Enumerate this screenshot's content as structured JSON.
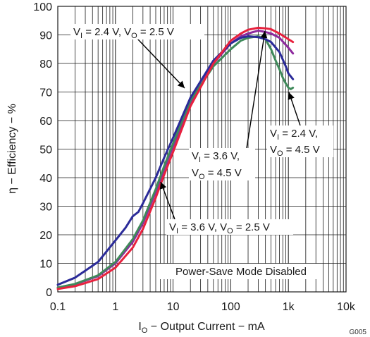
{
  "chart_data": {
    "type": "line",
    "xscale": "log",
    "xlim": [
      0.1,
      10000
    ],
    "ylim": [
      0,
      100
    ],
    "xlabel": {
      "main": "I",
      "sub": "O",
      "rest": " − Output Current − mA"
    },
    "ylabel": "η − Efficiency − %",
    "xticks": [
      "0.1",
      "1",
      "10",
      "100",
      "1k",
      "10k"
    ],
    "yticks": [
      "0",
      "10",
      "20",
      "30",
      "40",
      "50",
      "60",
      "70",
      "80",
      "90",
      "100"
    ],
    "grid": true,
    "annotation": "Power-Save Mode Disabled",
    "figure_code": "G005",
    "colors": {
      "blue": "#2b2b99",
      "purple": "#8e2a9e",
      "green": "#3f8a5a",
      "red": "#e8213d"
    },
    "series": [
      {
        "label_lines": [
          [
            "V",
            "I",
            " = 2.4 V, V",
            "O",
            " = 2.5 V"
          ]
        ],
        "color": "purple",
        "x": [
          0.1,
          0.2,
          0.5,
          1,
          2,
          3,
          5,
          7,
          10,
          20,
          50,
          100,
          150,
          200,
          300,
          400,
          500,
          700,
          1000,
          1200
        ],
        "y": [
          1.5,
          2.7,
          5.5,
          10,
          17.5,
          24,
          35,
          43,
          51,
          66,
          80,
          87,
          89.5,
          90.5,
          91.5,
          91,
          90.5,
          89,
          85.5,
          83.5
        ]
      },
      {
        "label_lines": [
          [
            "V",
            "I",
            " = 2.4 V,"
          ],
          [
            "V",
            "O",
            " = 4.5 V"
          ]
        ],
        "color": "green",
        "x": [
          0.1,
          0.2,
          0.5,
          1,
          2,
          3,
          5,
          7,
          10,
          20,
          50,
          100,
          150,
          200,
          300,
          400,
          500,
          600,
          700,
          800,
          900,
          1000,
          1100,
          1200
        ],
        "y": [
          1.5,
          2.8,
          5.8,
          10.5,
          18.5,
          25,
          36,
          44,
          52,
          67,
          79,
          85,
          88,
          89,
          89.5,
          88.5,
          85,
          81,
          78,
          75,
          73,
          71.5,
          71,
          71.5
        ]
      },
      {
        "label_lines": [
          [
            "V",
            "I",
            " = 3.6 V,"
          ],
          [
            "V",
            "O",
            " = 4.5 V"
          ]
        ],
        "color": "blue",
        "x": [
          0.1,
          0.2,
          0.5,
          1,
          1.5,
          2,
          2.5,
          3,
          5,
          7,
          10,
          20,
          50,
          100,
          150,
          200,
          300,
          400,
          500,
          700,
          900,
          1000,
          1200
        ],
        "y": [
          2.5,
          5,
          10.5,
          18,
          22.5,
          26.5,
          28,
          31,
          40,
          47,
          54,
          68,
          81,
          87,
          89,
          89.5,
          89.2,
          88.5,
          87.5,
          84,
          79,
          76.5,
          74.5
        ]
      },
      {
        "label_lines": [
          [
            "V",
            "I",
            " = 3.6 V, V",
            "O",
            " = 2.5 V"
          ]
        ],
        "color": "red",
        "x": [
          0.1,
          0.2,
          0.5,
          1,
          2,
          3,
          5,
          7,
          10,
          20,
          50,
          100,
          150,
          200,
          300,
          400,
          500,
          700,
          1000,
          1200
        ],
        "y": [
          1,
          2,
          4.5,
          8.5,
          15.5,
          22,
          33,
          41,
          49,
          65,
          80,
          88,
          90.5,
          91.8,
          92.5,
          92.3,
          92,
          90.5,
          88.5,
          87.5
        ]
      }
    ]
  }
}
